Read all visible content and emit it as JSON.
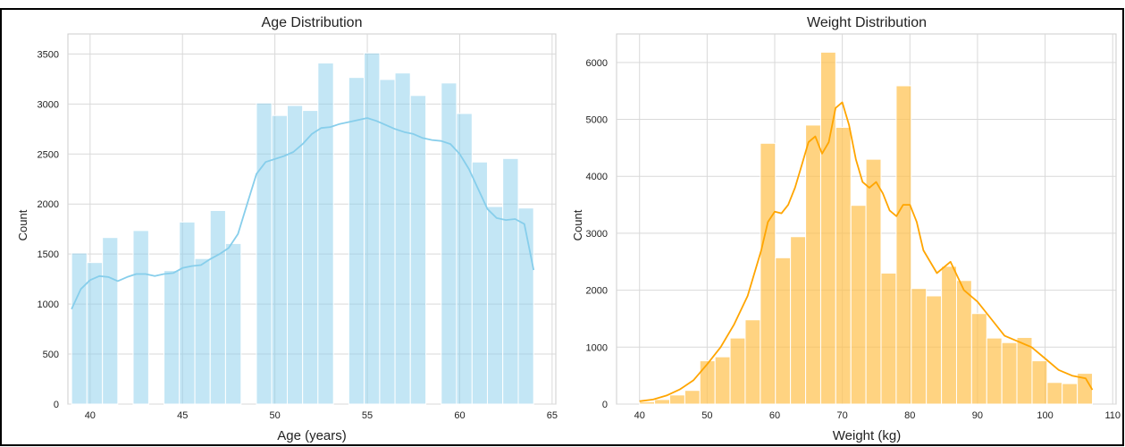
{
  "chart_data": [
    {
      "type": "bar",
      "title": "Age Distribution",
      "xlabel": "Age (years)",
      "ylabel": "Count",
      "xlim": [
        38.8,
        65.2
      ],
      "ylim": [
        0,
        3700
      ],
      "xticks": [
        40,
        45,
        50,
        55,
        60,
        65
      ],
      "yticks": [
        0,
        500,
        1000,
        1500,
        2000,
        2500,
        3000,
        3500
      ],
      "grid": true,
      "colors": {
        "bar": "#87ceeb",
        "kde": "#87ceeb"
      },
      "bins": [
        {
          "x0": 39.0,
          "x1": 39.83,
          "count": 1510
        },
        {
          "x0": 39.83,
          "x1": 40.67,
          "count": 1415
        },
        {
          "x0": 40.67,
          "x1": 41.5,
          "count": 1665
        },
        {
          "x0": 41.5,
          "x1": 42.33,
          "count": 0
        },
        {
          "x0": 42.33,
          "x1": 43.17,
          "count": 1735
        },
        {
          "x0": 43.17,
          "x1": 44.0,
          "count": 0
        },
        {
          "x0": 44.0,
          "x1": 44.83,
          "count": 1335
        },
        {
          "x0": 44.83,
          "x1": 45.67,
          "count": 1820
        },
        {
          "x0": 45.67,
          "x1": 46.5,
          "count": 1455
        },
        {
          "x0": 46.5,
          "x1": 47.33,
          "count": 1935
        },
        {
          "x0": 47.33,
          "x1": 48.17,
          "count": 1605
        },
        {
          "x0": 48.17,
          "x1": 49.0,
          "count": 0
        },
        {
          "x0": 49.0,
          "x1": 49.83,
          "count": 3010
        },
        {
          "x0": 49.83,
          "x1": 50.67,
          "count": 2885
        },
        {
          "x0": 50.67,
          "x1": 51.5,
          "count": 2985
        },
        {
          "x0": 51.5,
          "x1": 52.33,
          "count": 2935
        },
        {
          "x0": 52.33,
          "x1": 53.17,
          "count": 3410
        },
        {
          "x0": 53.17,
          "x1": 54.0,
          "count": 0
        },
        {
          "x0": 54.0,
          "x1": 54.83,
          "count": 3265
        },
        {
          "x0": 54.83,
          "x1": 55.67,
          "count": 3510
        },
        {
          "x0": 55.67,
          "x1": 56.5,
          "count": 3245
        },
        {
          "x0": 56.5,
          "x1": 57.33,
          "count": 3310
        },
        {
          "x0": 57.33,
          "x1": 58.17,
          "count": 3085
        },
        {
          "x0": 58.17,
          "x1": 59.0,
          "count": 0
        },
        {
          "x0": 59.0,
          "x1": 59.83,
          "count": 3210
        },
        {
          "x0": 59.83,
          "x1": 60.67,
          "count": 2905
        },
        {
          "x0": 60.67,
          "x1": 61.5,
          "count": 2420
        },
        {
          "x0": 61.5,
          "x1": 62.33,
          "count": 1975
        },
        {
          "x0": 62.33,
          "x1": 63.17,
          "count": 2455
        },
        {
          "x0": 63.17,
          "x1": 64.0,
          "count": 1960
        }
      ],
      "kde": {
        "x": [
          39.0,
          39.5,
          40.0,
          40.5,
          41.0,
          41.5,
          42.0,
          42.5,
          43.0,
          43.5,
          44.0,
          44.5,
          45.0,
          45.5,
          46.0,
          46.5,
          47.0,
          47.5,
          48.0,
          48.5,
          49.0,
          49.5,
          50.0,
          50.5,
          51.0,
          51.5,
          52.0,
          52.5,
          53.0,
          53.5,
          54.0,
          54.5,
          55.0,
          55.5,
          56.0,
          56.5,
          57.0,
          57.5,
          58.0,
          58.5,
          59.0,
          59.5,
          60.0,
          60.5,
          61.0,
          61.5,
          62.0,
          62.5,
          63.0,
          63.5,
          64.0
        ],
        "y": [
          950,
          1150,
          1240,
          1280,
          1270,
          1230,
          1270,
          1300,
          1300,
          1280,
          1300,
          1310,
          1360,
          1380,
          1390,
          1450,
          1500,
          1560,
          1700,
          2000,
          2300,
          2420,
          2450,
          2480,
          2520,
          2600,
          2700,
          2760,
          2770,
          2800,
          2820,
          2840,
          2860,
          2830,
          2790,
          2750,
          2720,
          2700,
          2660,
          2640,
          2630,
          2600,
          2500,
          2350,
          2150,
          1950,
          1860,
          1840,
          1850,
          1800,
          1340
        ]
      }
    },
    {
      "type": "bar",
      "title": "Weight Distribution",
      "xlabel": "Weight (kg)",
      "ylabel": "Count",
      "xlim": [
        36.6,
        110.5
      ],
      "ylim": [
        0,
        6500
      ],
      "xticks": [
        40,
        50,
        60,
        70,
        80,
        90,
        100,
        110
      ],
      "yticks": [
        0,
        1000,
        2000,
        3000,
        4000,
        5000,
        6000
      ],
      "grid": true,
      "colors": {
        "bar": "#ffc04c",
        "kde": "#ffa500"
      },
      "bins": [
        {
          "x0": 40.0,
          "x1": 42.23,
          "count": 40
        },
        {
          "x0": 42.23,
          "x1": 44.47,
          "count": 80
        },
        {
          "x0": 44.47,
          "x1": 46.7,
          "count": 160
        },
        {
          "x0": 46.7,
          "x1": 48.93,
          "count": 240
        },
        {
          "x0": 48.93,
          "x1": 51.17,
          "count": 760
        },
        {
          "x0": 51.17,
          "x1": 53.4,
          "count": 830
        },
        {
          "x0": 53.4,
          "x1": 55.63,
          "count": 1160
        },
        {
          "x0": 55.63,
          "x1": 57.87,
          "count": 1480
        },
        {
          "x0": 57.87,
          "x1": 60.1,
          "count": 4580
        },
        {
          "x0": 60.1,
          "x1": 62.33,
          "count": 2570
        },
        {
          "x0": 62.33,
          "x1": 64.57,
          "count": 2940
        },
        {
          "x0": 64.57,
          "x1": 66.8,
          "count": 4900
        },
        {
          "x0": 66.8,
          "x1": 69.03,
          "count": 6180
        },
        {
          "x0": 69.03,
          "x1": 71.27,
          "count": 4860
        },
        {
          "x0": 71.27,
          "x1": 73.5,
          "count": 3490
        },
        {
          "x0": 73.5,
          "x1": 75.73,
          "count": 4300
        },
        {
          "x0": 75.73,
          "x1": 77.97,
          "count": 2300
        },
        {
          "x0": 77.97,
          "x1": 80.2,
          "count": 5590
        },
        {
          "x0": 80.2,
          "x1": 82.43,
          "count": 2030
        },
        {
          "x0": 82.43,
          "x1": 84.67,
          "count": 1900
        },
        {
          "x0": 84.67,
          "x1": 86.9,
          "count": 2420
        },
        {
          "x0": 86.9,
          "x1": 89.13,
          "count": 2170
        },
        {
          "x0": 89.13,
          "x1": 91.37,
          "count": 1590
        },
        {
          "x0": 91.37,
          "x1": 93.6,
          "count": 1160
        },
        {
          "x0": 93.6,
          "x1": 95.83,
          "count": 1080
        },
        {
          "x0": 95.83,
          "x1": 98.07,
          "count": 1170
        },
        {
          "x0": 98.07,
          "x1": 100.3,
          "count": 760
        },
        {
          "x0": 100.3,
          "x1": 102.53,
          "count": 380
        },
        {
          "x0": 102.53,
          "x1": 104.77,
          "count": 360
        },
        {
          "x0": 104.77,
          "x1": 107.0,
          "count": 540
        }
      ],
      "kde": {
        "x": [
          40,
          42,
          44,
          46,
          48,
          50,
          52,
          54,
          56,
          58,
          59,
          60,
          61,
          62,
          63,
          64,
          65,
          66,
          67,
          68,
          69,
          70,
          71,
          72,
          73,
          74,
          75,
          76,
          77,
          78,
          79,
          80,
          81,
          82,
          84,
          86,
          88,
          90,
          92,
          94,
          96,
          98,
          100,
          102,
          104,
          106,
          107
        ],
        "y": [
          50,
          80,
          150,
          260,
          420,
          700,
          1000,
          1400,
          1900,
          2700,
          3200,
          3380,
          3350,
          3500,
          3800,
          4200,
          4600,
          4700,
          4400,
          4600,
          5200,
          5300,
          4900,
          4300,
          3900,
          3800,
          3900,
          3700,
          3400,
          3300,
          3500,
          3500,
          3200,
          2700,
          2300,
          2500,
          2000,
          1800,
          1500,
          1200,
          1100,
          1000,
          800,
          600,
          500,
          450,
          250
        ]
      }
    }
  ]
}
